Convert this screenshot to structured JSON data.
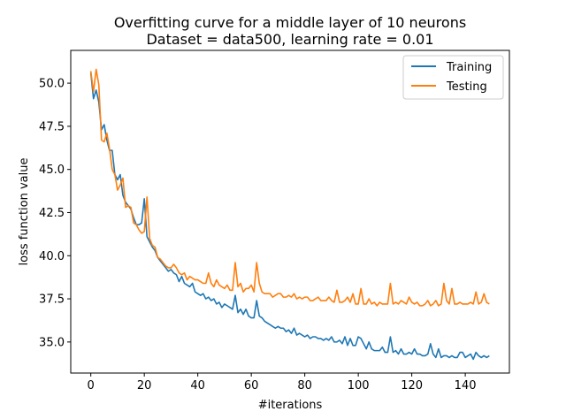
{
  "chart_data": {
    "type": "line",
    "title": "Overfitting curve for a middle layer of 10 neurons",
    "subtitle": "Dataset = data500, learning rate = 0.01",
    "xlabel": "#iterations",
    "ylabel": "loss function value",
    "xlim": [
      -7.5,
      156.5
    ],
    "ylim": [
      33.2,
      51.9
    ],
    "xticks": [
      0,
      20,
      40,
      60,
      80,
      100,
      120,
      140
    ],
    "yticks": [
      35.0,
      37.5,
      40.0,
      42.5,
      45.0,
      47.5,
      50.0
    ],
    "xtick_labels": [
      "0",
      "20",
      "40",
      "60",
      "80",
      "100",
      "120",
      "140"
    ],
    "ytick_labels": [
      "35.0",
      "37.5",
      "40.0",
      "42.5",
      "45.0",
      "47.5",
      "50.0"
    ],
    "grid": false,
    "legend_position": "upper right",
    "series": [
      {
        "name": "Training",
        "color": "#1f77b4",
        "x": [
          0,
          1,
          2,
          3,
          4,
          5,
          6,
          7,
          8,
          9,
          10,
          11,
          12,
          13,
          14,
          15,
          16,
          17,
          18,
          19,
          20,
          21,
          22,
          23,
          24,
          25,
          26,
          27,
          28,
          29,
          30,
          31,
          32,
          33,
          34,
          35,
          36,
          37,
          38,
          39,
          40,
          41,
          42,
          43,
          44,
          45,
          46,
          47,
          48,
          49,
          50,
          51,
          52,
          53,
          54,
          55,
          56,
          57,
          58,
          59,
          60,
          61,
          62,
          63,
          64,
          65,
          66,
          67,
          68,
          69,
          70,
          71,
          72,
          73,
          74,
          75,
          76,
          77,
          78,
          79,
          80,
          81,
          82,
          83,
          84,
          85,
          86,
          87,
          88,
          89,
          90,
          91,
          92,
          93,
          94,
          95,
          96,
          97,
          98,
          99,
          100,
          101,
          102,
          103,
          104,
          105,
          106,
          107,
          108,
          109,
          110,
          111,
          112,
          113,
          114,
          115,
          116,
          117,
          118,
          119,
          120,
          121,
          122,
          123,
          124,
          125,
          126,
          127,
          128,
          129,
          130,
          131,
          132,
          133,
          134,
          135,
          136,
          137,
          138,
          139,
          140,
          141,
          142,
          143,
          144,
          145,
          146,
          147,
          148,
          149
        ],
        "values": [
          50.6,
          49.1,
          49.6,
          48.9,
          47.3,
          47.6,
          46.7,
          46.1,
          46.1,
          44.7,
          44.4,
          44.7,
          43.5,
          43.1,
          42.9,
          42.7,
          42.2,
          41.8,
          41.8,
          41.9,
          43.3,
          41.1,
          40.8,
          40.5,
          40.3,
          39.9,
          39.7,
          39.5,
          39.3,
          39.1,
          39.2,
          39.0,
          38.9,
          38.5,
          38.8,
          38.4,
          38.3,
          38.2,
          38.4,
          37.9,
          37.8,
          37.7,
          37.8,
          37.5,
          37.6,
          37.4,
          37.5,
          37.2,
          37.3,
          37.0,
          37.2,
          37.1,
          37.0,
          36.9,
          37.7,
          36.7,
          36.9,
          36.6,
          36.9,
          36.5,
          36.4,
          36.4,
          37.4,
          36.5,
          36.4,
          36.2,
          36.1,
          36.0,
          35.9,
          35.8,
          35.9,
          35.8,
          35.8,
          35.6,
          35.7,
          35.5,
          35.8,
          35.4,
          35.5,
          35.4,
          35.3,
          35.4,
          35.2,
          35.3,
          35.3,
          35.2,
          35.2,
          35.1,
          35.2,
          35.1,
          35.3,
          35.0,
          35.0,
          35.1,
          34.9,
          35.3,
          34.8,
          35.2,
          34.8,
          34.8,
          35.3,
          35.2,
          34.9,
          34.6,
          35.0,
          34.6,
          34.5,
          34.5,
          34.5,
          34.7,
          34.4,
          34.4,
          35.3,
          34.4,
          34.5,
          34.3,
          34.6,
          34.3,
          34.3,
          34.4,
          34.3,
          34.6,
          34.3,
          34.3,
          34.2,
          34.2,
          34.3,
          34.9,
          34.3,
          34.1,
          34.6,
          34.1,
          34.2,
          34.2,
          34.1,
          34.2,
          34.1,
          34.1,
          34.4,
          34.4,
          34.1,
          34.2,
          34.3,
          34.0,
          34.4,
          34.2,
          34.1,
          34.2,
          34.1,
          34.2
        ]
      },
      {
        "name": "Testing",
        "color": "#ff7f0e",
        "x": [
          0,
          1,
          2,
          3,
          4,
          5,
          6,
          7,
          8,
          9,
          10,
          11,
          12,
          13,
          14,
          15,
          16,
          17,
          18,
          19,
          20,
          21,
          22,
          23,
          24,
          25,
          26,
          27,
          28,
          29,
          30,
          31,
          32,
          33,
          34,
          35,
          36,
          37,
          38,
          39,
          40,
          41,
          42,
          43,
          44,
          45,
          46,
          47,
          48,
          49,
          50,
          51,
          52,
          53,
          54,
          55,
          56,
          57,
          58,
          59,
          60,
          61,
          62,
          63,
          64,
          65,
          66,
          67,
          68,
          69,
          70,
          71,
          72,
          73,
          74,
          75,
          76,
          77,
          78,
          79,
          80,
          81,
          82,
          83,
          84,
          85,
          86,
          87,
          88,
          89,
          90,
          91,
          92,
          93,
          94,
          95,
          96,
          97,
          98,
          99,
          100,
          101,
          102,
          103,
          104,
          105,
          106,
          107,
          108,
          109,
          110,
          111,
          112,
          113,
          114,
          115,
          116,
          117,
          118,
          119,
          120,
          121,
          122,
          123,
          124,
          125,
          126,
          127,
          128,
          129,
          130,
          131,
          132,
          133,
          134,
          135,
          136,
          137,
          138,
          139,
          140,
          141,
          142,
          143,
          144,
          145,
          146,
          147,
          148,
          149
        ],
        "values": [
          50.7,
          49.5,
          50.8,
          49.9,
          46.7,
          46.6,
          47.1,
          46.2,
          45.0,
          44.7,
          43.8,
          44.1,
          44.5,
          42.8,
          42.9,
          42.8,
          41.9,
          41.8,
          41.5,
          41.3,
          41.4,
          43.4,
          41.0,
          40.6,
          40.5,
          39.9,
          39.8,
          39.6,
          39.4,
          39.3,
          39.3,
          39.5,
          39.3,
          39.0,
          38.9,
          39.0,
          38.6,
          38.8,
          38.7,
          38.6,
          38.6,
          38.5,
          38.4,
          38.4,
          39.0,
          38.4,
          38.2,
          38.6,
          38.3,
          38.2,
          38.1,
          38.3,
          38.0,
          38.0,
          39.6,
          38.2,
          38.4,
          37.9,
          38.1,
          38.1,
          38.3,
          37.9,
          39.6,
          38.4,
          37.9,
          37.8,
          37.8,
          37.8,
          37.6,
          37.7,
          37.8,
          37.8,
          37.6,
          37.6,
          37.7,
          37.6,
          37.8,
          37.5,
          37.6,
          37.5,
          37.6,
          37.6,
          37.4,
          37.4,
          37.5,
          37.6,
          37.4,
          37.4,
          37.4,
          37.6,
          37.4,
          37.3,
          38.0,
          37.3,
          37.3,
          37.4,
          37.6,
          37.3,
          37.8,
          37.2,
          37.2,
          38.1,
          37.2,
          37.2,
          37.5,
          37.2,
          37.3,
          37.1,
          37.3,
          37.2,
          37.2,
          37.2,
          38.4,
          37.2,
          37.3,
          37.2,
          37.4,
          37.3,
          37.2,
          37.6,
          37.3,
          37.2,
          37.3,
          37.1,
          37.1,
          37.2,
          37.4,
          37.1,
          37.2,
          37.4,
          37.1,
          37.2,
          38.4,
          37.4,
          37.2,
          38.1,
          37.2,
          37.2,
          37.3,
          37.2,
          37.2,
          37.2,
          37.3,
          37.2,
          37.9,
          37.2,
          37.3,
          37.8,
          37.3,
          37.2
        ]
      }
    ]
  }
}
